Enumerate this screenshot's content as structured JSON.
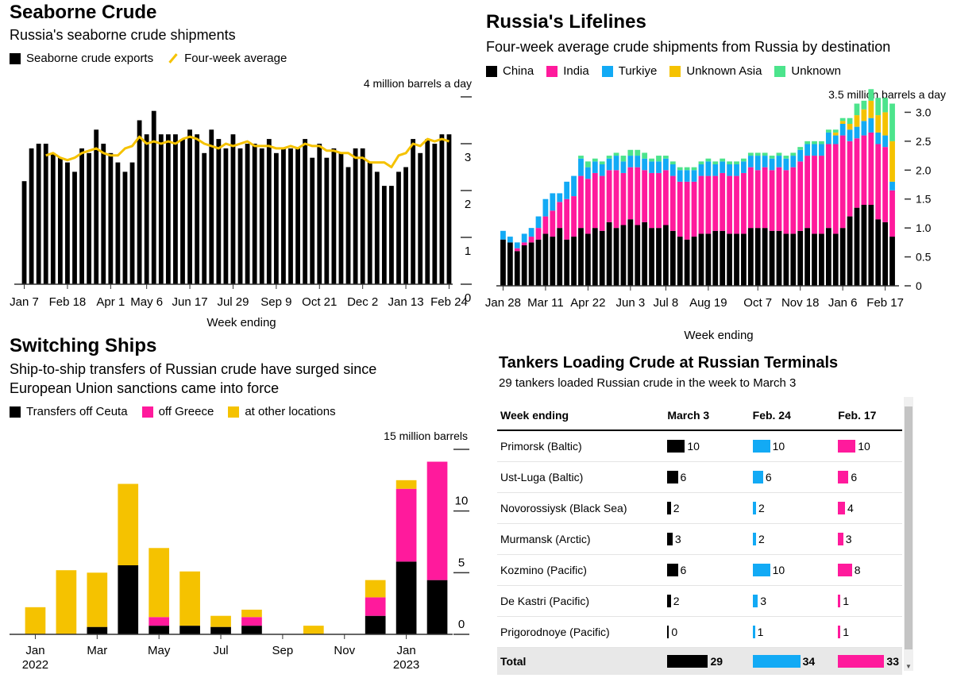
{
  "colors": {
    "black": "#000000",
    "yellow": "#f5c200",
    "pink": "#ff1a9c",
    "blue": "#12aaf5",
    "green": "#4ce48c",
    "axis": "#333333"
  },
  "panel1": {
    "title": "Seaborne Crude",
    "subtitle": "Russia's seaborne crude shipments",
    "legend": [
      "Seaborne crude exports",
      "Four-week average"
    ],
    "xlabel": "Week ending"
  },
  "panel2": {
    "title": "Russia's Lifelines",
    "subtitle": "Four-week average crude shipments from Russia by destination",
    "legend": [
      "China",
      "India",
      "Turkiye",
      "Unknown Asia",
      "Unknown"
    ],
    "xlabel": "Week ending"
  },
  "panel3": {
    "title": "Switching Ships",
    "subtitle_line1": "Ship-to-ship transfers of Russian crude have surged since",
    "subtitle_line2": "European Union sanctions came into force",
    "legend": [
      "Transfers off Ceuta",
      "off Greece",
      "at other locations"
    ]
  },
  "table": {
    "title": "Tankers Loading Crude at Russian Terminals",
    "subtitle": "29 tankers loaded Russian crude in the week to March 3",
    "headers": [
      "Week ending",
      "March 3",
      "Feb. 24",
      "Feb. 17"
    ],
    "rows": [
      {
        "name": "Primorsk (Baltic)",
        "v": [
          10,
          10,
          10
        ]
      },
      {
        "name": "Ust-Luga (Baltic)",
        "v": [
          6,
          6,
          6
        ]
      },
      {
        "name": "Novorossiysk (Black Sea)",
        "v": [
          2,
          2,
          4
        ]
      },
      {
        "name": "Murmansk (Arctic)",
        "v": [
          3,
          2,
          3
        ]
      },
      {
        "name": "Kozmino (Pacific)",
        "v": [
          6,
          10,
          8
        ]
      },
      {
        "name": "De Kastri (Pacific)",
        "v": [
          2,
          3,
          1
        ]
      },
      {
        "name": "Prigorodnoye (Pacific)",
        "v": [
          0,
          1,
          1
        ]
      }
    ],
    "total": {
      "name": "Total",
      "v": [
        29,
        34,
        33
      ]
    },
    "max": 34
  },
  "chart_data": [
    {
      "type": "bar",
      "title": "Seaborne Crude",
      "subtitle": "Russia's seaborne crude shipments",
      "xlabel": "Week ending",
      "ylabel": "4 million barrels a day",
      "unit_label": "4 million barrels a day",
      "ylim": [
        0,
        4
      ],
      "yticks": [
        0,
        1,
        2,
        3,
        4
      ],
      "ytick_labels": [
        "0",
        "1",
        "2",
        "3",
        ""
      ],
      "xtick_labels": [
        "Jan 7",
        "Feb 18",
        "Apr 1",
        "May 6",
        "Jun 17",
        "Jul 29",
        "Sep 9",
        "Oct 21",
        "Dec 2",
        "Jan 13",
        "Feb 24"
      ],
      "xtick_index": [
        0,
        6,
        12,
        17,
        23,
        29,
        35,
        41,
        47,
        53,
        59
      ],
      "series": [
        {
          "name": "Seaborne crude exports",
          "type": "bar",
          "values": [
            2.2,
            2.9,
            3.0,
            3.0,
            2.8,
            2.7,
            2.6,
            2.4,
            2.9,
            2.8,
            3.3,
            3.0,
            2.8,
            2.6,
            2.4,
            2.6,
            3.5,
            3.2,
            3.7,
            3.2,
            3.2,
            3.2,
            3.1,
            3.3,
            3.2,
            2.8,
            3.3,
            3.1,
            2.9,
            3.2,
            2.9,
            3.0,
            3.0,
            2.9,
            3.1,
            2.8,
            2.9,
            2.9,
            2.9,
            3.1,
            2.7,
            3.0,
            2.7,
            2.9,
            2.8,
            2.5,
            2.9,
            2.9,
            2.6,
            2.4,
            2.1,
            2.1,
            2.4,
            2.5,
            3.1,
            2.8,
            3.1,
            3.0,
            3.2,
            3.2
          ]
        },
        {
          "name": "Four-week average",
          "type": "line",
          "values": [
            null,
            null,
            null,
            2.75,
            2.8,
            2.7,
            2.65,
            2.7,
            2.8,
            2.85,
            2.9,
            2.8,
            2.75,
            2.75,
            2.9,
            2.95,
            3.15,
            3.0,
            3.05,
            3.0,
            3.05,
            3.0,
            3.1,
            3.15,
            3.1,
            3.0,
            2.95,
            2.9,
            3.0,
            2.95,
            3.0,
            3.05,
            2.95,
            2.95,
            2.95,
            2.9,
            2.9,
            2.95,
            2.9,
            3.0,
            2.95,
            2.95,
            2.85,
            2.85,
            2.8,
            2.8,
            2.7,
            2.7,
            2.6,
            2.6,
            2.6,
            2.5,
            2.75,
            2.8,
            3.0,
            2.95,
            3.1,
            3.05,
            3.1,
            3.05
          ]
        }
      ]
    },
    {
      "type": "bar",
      "stacked": true,
      "title": "Russia's Lifelines",
      "subtitle": "Four-week average crude shipments from Russia by destination",
      "xlabel": "Week ending",
      "ylabel": "3.5 million barrels a day",
      "unit_label": "3.5 million barrels a day",
      "ylim": [
        0,
        3.5
      ],
      "yticks": [
        0,
        0.5,
        1.0,
        1.5,
        2.0,
        2.5,
        3.0,
        3.5
      ],
      "ytick_labels": [
        "0",
        "0.5",
        "1.0",
        "1.5",
        "2.0",
        "2.5",
        "3.0",
        ""
      ],
      "xtick_labels": [
        "Jan 28",
        "Mar 11",
        "Apr 22",
        "Jun 3",
        "Jul 8",
        "Aug 19",
        "Oct 7",
        "Nov 18",
        "Jan 6",
        "Feb 17"
      ],
      "xtick_index": [
        0,
        6,
        12,
        18,
        23,
        29,
        36,
        42,
        48,
        54
      ],
      "series": [
        {
          "name": "China",
          "values": [
            0.8,
            0.75,
            0.6,
            0.7,
            0.75,
            0.8,
            0.9,
            0.85,
            1.0,
            0.8,
            0.85,
            1.0,
            0.9,
            1.0,
            0.95,
            1.1,
            1.0,
            1.05,
            1.15,
            1.05,
            1.1,
            1.0,
            1.0,
            1.05,
            0.95,
            0.85,
            0.8,
            0.85,
            0.9,
            0.9,
            0.95,
            0.95,
            0.9,
            0.9,
            0.9,
            1.0,
            1.0,
            1.0,
            0.95,
            0.95,
            0.9,
            0.9,
            0.95,
            1.0,
            0.9,
            0.9,
            1.0,
            0.9,
            1.0,
            1.2,
            1.35,
            1.4,
            1.4,
            1.15,
            1.1,
            0.85
          ]
        },
        {
          "name": "India",
          "values": [
            0.0,
            0.0,
            0.05,
            0.05,
            0.1,
            0.2,
            0.3,
            0.45,
            0.45,
            0.7,
            0.7,
            0.9,
            0.95,
            0.95,
            0.95,
            0.9,
            1.0,
            0.9,
            0.9,
            1.0,
            0.9,
            0.95,
            0.95,
            0.95,
            0.95,
            0.95,
            1.0,
            0.95,
            1.0,
            1.0,
            0.95,
            1.0,
            1.0,
            1.0,
            1.05,
            1.05,
            1.0,
            1.05,
            1.05,
            1.1,
            1.1,
            1.15,
            1.2,
            1.25,
            1.35,
            1.35,
            1.45,
            1.55,
            1.6,
            1.3,
            1.2,
            1.2,
            1.25,
            1.3,
            1.3,
            0.8
          ]
        },
        {
          "name": "Turkiye",
          "values": [
            0.15,
            0.1,
            0.1,
            0.15,
            0.15,
            0.2,
            0.3,
            0.3,
            0.15,
            0.3,
            0.35,
            0.3,
            0.2,
            0.2,
            0.2,
            0.2,
            0.25,
            0.2,
            0.2,
            0.2,
            0.2,
            0.2,
            0.2,
            0.2,
            0.2,
            0.2,
            0.2,
            0.2,
            0.2,
            0.25,
            0.2,
            0.2,
            0.2,
            0.2,
            0.2,
            0.2,
            0.25,
            0.2,
            0.2,
            0.2,
            0.2,
            0.2,
            0.2,
            0.2,
            0.2,
            0.2,
            0.2,
            0.15,
            0.2,
            0.2,
            0.2,
            0.25,
            0.25,
            0.2,
            0.2,
            0.15
          ]
        },
        {
          "name": "Unknown Asia",
          "values": [
            0.0,
            0.0,
            0.0,
            0.0,
            0.0,
            0.0,
            0.0,
            0.0,
            0.0,
            0.0,
            0.0,
            0.0,
            0.0,
            0.0,
            0.0,
            0.0,
            0.0,
            0.0,
            0.0,
            0.0,
            0.0,
            0.0,
            0.0,
            0.0,
            0.0,
            0.0,
            0.0,
            0.0,
            0.0,
            0.0,
            0.0,
            0.0,
            0.0,
            0.0,
            0.0,
            0.0,
            0.0,
            0.0,
            0.0,
            0.0,
            0.0,
            0.0,
            0.0,
            0.0,
            0.0,
            0.0,
            0.0,
            0.05,
            0.05,
            0.1,
            0.2,
            0.2,
            0.3,
            0.3,
            0.4,
            0.7
          ]
        },
        {
          "name": "Unknown",
          "values": [
            0.0,
            0.0,
            0.0,
            0.0,
            0.0,
            0.0,
            0.0,
            0.0,
            0.0,
            0.0,
            0.0,
            0.05,
            0.1,
            0.05,
            0.05,
            0.05,
            0.05,
            0.1,
            0.1,
            0.1,
            0.1,
            0.05,
            0.1,
            0.05,
            0.05,
            0.05,
            0.05,
            0.05,
            0.05,
            0.05,
            0.05,
            0.05,
            0.05,
            0.05,
            0.05,
            0.05,
            0.05,
            0.05,
            0.05,
            0.05,
            0.05,
            0.05,
            0.05,
            0.05,
            0.05,
            0.05,
            0.05,
            0.05,
            0.05,
            0.1,
            0.2,
            0.15,
            0.2,
            0.3,
            0.25,
            0.65
          ]
        }
      ]
    },
    {
      "type": "bar",
      "stacked": true,
      "title": "Switching Ships",
      "subtitle": "Ship-to-ship transfers of Russian crude have surged since European Union sanctions came into force",
      "ylabel": "15 million barrels",
      "unit_label": "15 million barrels",
      "ylim": [
        0,
        15
      ],
      "yticks": [
        0,
        5,
        10,
        15
      ],
      "ytick_labels": [
        "0",
        "5",
        "10",
        ""
      ],
      "categories": [
        "Jan 2022",
        "Feb 2022",
        "Mar 2022",
        "Apr 2022",
        "May 2022",
        "Jun 2022",
        "Jul 2022",
        "Aug 2022",
        "Sep 2022",
        "Oct 2022",
        "Nov 2022",
        "Dec 2022",
        "Jan 2023",
        "Feb 2023"
      ],
      "xtick_labels": [
        "Jan",
        "Mar",
        "May",
        "Jul",
        "Sep",
        "Nov",
        "Jan"
      ],
      "xtick_index": [
        0,
        2,
        4,
        6,
        8,
        10,
        12
      ],
      "xtick_year_labels": [
        "2022",
        "2023"
      ],
      "xtick_year_index": [
        0,
        12
      ],
      "series": [
        {
          "name": "Transfers off Ceuta",
          "values": [
            0.0,
            0.0,
            0.6,
            5.6,
            0.7,
            0.7,
            0.6,
            0.7,
            0.0,
            0.0,
            0.0,
            1.5,
            5.9,
            4.4
          ]
        },
        {
          "name": "off Greece",
          "values": [
            0.0,
            0.0,
            0.0,
            0.0,
            0.7,
            0.0,
            0.0,
            0.7,
            0.0,
            0.0,
            0.0,
            1.5,
            5.9,
            9.6
          ]
        },
        {
          "name": "at other locations",
          "values": [
            2.2,
            5.2,
            4.4,
            6.6,
            5.6,
            4.4,
            0.9,
            0.6,
            0.0,
            0.7,
            0.0,
            1.4,
            0.7,
            0.0
          ]
        }
      ]
    }
  ]
}
